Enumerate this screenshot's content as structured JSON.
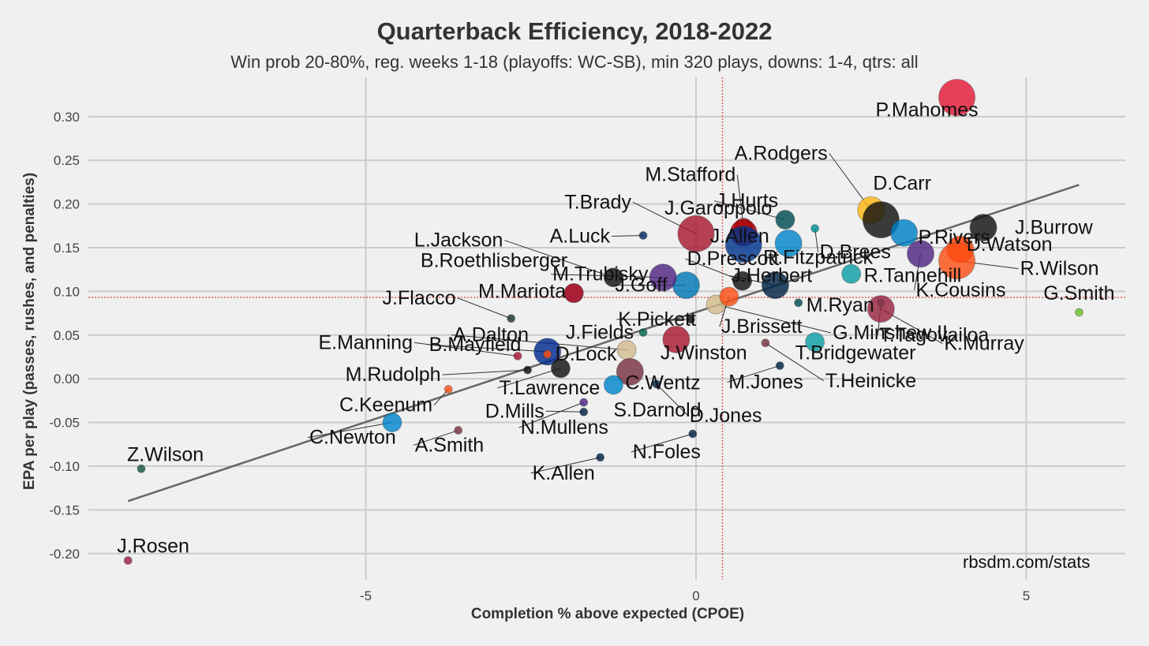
{
  "chart_data": {
    "type": "scatter",
    "title": "Quarterback Efficiency, 2018-2022",
    "subtitle": "Win prob 20-80%, reg. weeks 1-18 (playoffs: WC-SB), min 320 plays, downs: 1-4, qtrs: all",
    "xlabel": "Completion % above expected (CPOE)",
    "ylabel": "EPA per play (passes, rushes, and penalties)",
    "caption": "rbsdm.com/stats",
    "xlim": [
      -9.2,
      6.5
    ],
    "ylim": [
      -0.23,
      0.345
    ],
    "x_ticks": [
      {
        "value": -5,
        "label": "-5"
      },
      {
        "value": 0,
        "label": "0"
      },
      {
        "value": 5,
        "label": "5"
      }
    ],
    "y_ticks": [
      {
        "value": 0.3,
        "label": "0.30"
      },
      {
        "value": 0.25,
        "label": "0.25"
      },
      {
        "value": 0.2,
        "label": "0.20"
      },
      {
        "value": 0.15,
        "label": "0.15"
      },
      {
        "value": 0.1,
        "label": "0.10"
      },
      {
        "value": 0.05,
        "label": "0.05"
      },
      {
        "value": 0.0,
        "label": "0.00"
      },
      {
        "value": -0.05,
        "label": "-0.05"
      },
      {
        "value": -0.1,
        "label": "-0.10"
      },
      {
        "value": -0.15,
        "label": "-0.15"
      },
      {
        "value": -0.2,
        "label": "-0.20"
      }
    ],
    "grid": true,
    "reference_lines": {
      "x_mean": 0.4,
      "y_mean": 0.093,
      "color": "#e06060"
    },
    "trend_line": {
      "x": [
        -8.6,
        5.8
      ],
      "y": [
        -0.14,
        0.222
      ],
      "color": "#666666"
    },
    "points": [
      {
        "name": "P.Mahomes",
        "x": 3.95,
        "y": 0.322,
        "size": "large",
        "color": "#e31837"
      },
      {
        "name": "A.Rodgers",
        "x": 2.65,
        "y": 0.193,
        "size": "medium",
        "color": "#ffb612"
      },
      {
        "name": "D.Carr",
        "x": 2.8,
        "y": 0.182,
        "size": "large",
        "color": "#111111"
      },
      {
        "name": "J.Hurts",
        "x": 1.35,
        "y": 0.182,
        "size": "small",
        "color": "#004c54"
      },
      {
        "name": "P.Rivers",
        "x": 3.15,
        "y": 0.167,
        "size": "medium",
        "color": "#0080c6"
      },
      {
        "name": "J.Burrow",
        "x": 4.35,
        "y": 0.173,
        "size": "medium",
        "color": "#111111"
      },
      {
        "name": "D.Watson",
        "x": 4.0,
        "y": 0.148,
        "size": "medium",
        "color": "#ff3c00"
      },
      {
        "name": "R.Wilson",
        "x": 3.95,
        "y": 0.135,
        "size": "large",
        "color": "#fb4f14"
      },
      {
        "name": "D.Brees",
        "x": 1.8,
        "y": 0.172,
        "size": "tiny",
        "color": "#008e97"
      },
      {
        "name": "K.Cousins",
        "x": 3.4,
        "y": 0.143,
        "size": "medium",
        "color": "#4f2683"
      },
      {
        "name": "R.Tannehill",
        "x": 2.35,
        "y": 0.12,
        "size": "small",
        "color": "#0c9ea5"
      },
      {
        "name": "G.Smith",
        "x": 5.8,
        "y": 0.076,
        "size": "tiny",
        "color": "#69be28"
      },
      {
        "name": "T.Tagovailoa",
        "x": 2.8,
        "y": 0.087,
        "size": "tiny",
        "color": "#008e97"
      },
      {
        "name": "K.Murray",
        "x": 2.8,
        "y": 0.08,
        "size": "medium",
        "color": "#97233f"
      },
      {
        "name": "M.Stafford",
        "x": 0.72,
        "y": 0.173,
        "size": "small",
        "color": "#a71930"
      },
      {
        "name": "J.Garoppolo",
        "x": 0.72,
        "y": 0.167,
        "size": "medium",
        "color": "#aa0000"
      },
      {
        "name": "T.Brady",
        "x": 0.0,
        "y": 0.166,
        "size": "large",
        "color": "#a71930"
      },
      {
        "name": "J.Allen",
        "x": 0.72,
        "y": 0.154,
        "size": "large",
        "color": "#00338d"
      },
      {
        "name": "R.Fitzpatrick",
        "x": 1.4,
        "y": 0.155,
        "size": "medium",
        "color": "#0085ca"
      },
      {
        "name": "J.Herbert",
        "x": 1.2,
        "y": 0.107,
        "size": "medium",
        "color": "#002244"
      },
      {
        "name": "D.Prescott",
        "x": 0.7,
        "y": 0.112,
        "size": "small",
        "color": "#111111"
      },
      {
        "name": "J.Goff",
        "x": -0.15,
        "y": 0.107,
        "size": "medium",
        "color": "#0076b6"
      },
      {
        "name": "M.Trubisky",
        "x": -0.5,
        "y": 0.116,
        "size": "medium",
        "color": "#4f2683"
      },
      {
        "name": "L.Jackson",
        "x": -1.25,
        "y": 0.116,
        "size": "small",
        "color": "#111111"
      },
      {
        "name": "A.Luck",
        "x": -0.8,
        "y": 0.164,
        "size": "tiny",
        "color": "#002c5f"
      },
      {
        "name": "M.Ryan",
        "x": 1.55,
        "y": 0.087,
        "size": "tiny",
        "color": "#004c54"
      },
      {
        "name": "G.Minshew II",
        "x": 0.3,
        "y": 0.085,
        "size": "small",
        "color": "#d3bc8d"
      },
      {
        "name": "J.Brissett",
        "x": 0.5,
        "y": 0.094,
        "size": "small",
        "color": "#fb4f14"
      },
      {
        "name": "B.Roethlisberger",
        "x": -1.85,
        "y": 0.098,
        "size": "small",
        "color": "#a71930"
      },
      {
        "name": "M.Mariota",
        "x": -1.85,
        "y": 0.098,
        "size": "small",
        "color": "#a71930"
      },
      {
        "name": "J.Flacco",
        "x": -2.8,
        "y": 0.069,
        "size": "tiny",
        "color": "#203731"
      },
      {
        "name": "K.Pickett",
        "x": -0.08,
        "y": 0.068,
        "size": "tiny",
        "color": "#111111"
      },
      {
        "name": "J.Fields",
        "x": -0.8,
        "y": 0.053,
        "size": "tiny",
        "color": "#00654f"
      },
      {
        "name": "A.Dalton",
        "x": -1.05,
        "y": 0.033,
        "size": "small",
        "color": "#d3bc8d"
      },
      {
        "name": "J.Winston",
        "x": -0.3,
        "y": 0.045,
        "size": "medium",
        "color": "#a71930"
      },
      {
        "name": "T.Bridgewater",
        "x": 1.8,
        "y": 0.042,
        "size": "small",
        "color": "#0c9ea5"
      },
      {
        "name": "T.Heinicke",
        "x": 1.05,
        "y": 0.041,
        "size": "tiny",
        "color": "#773141"
      },
      {
        "name": "M.Jones",
        "x": 1.27,
        "y": 0.015,
        "size": "tiny",
        "color": "#002244"
      },
      {
        "name": "E.Manning",
        "x": -2.7,
        "y": 0.026,
        "size": "tiny",
        "color": "#a71930"
      },
      {
        "name": "B.Mayfield",
        "x": -2.25,
        "y": 0.031,
        "size": "medium",
        "color": "#002a8c"
      },
      {
        "name": "D.Lock",
        "x": -2.25,
        "y": 0.028,
        "size": "tiny",
        "color": "#fb4f14"
      },
      {
        "name": "M.Rudolph",
        "x": -2.55,
        "y": 0.01,
        "size": "tiny",
        "color": "#111111"
      },
      {
        "name": "T.Lawrence",
        "x": -2.05,
        "y": 0.012,
        "size": "small",
        "color": "#111111"
      },
      {
        "name": "C.Wentz",
        "x": -1.0,
        "y": 0.008,
        "size": "medium",
        "color": "#773141"
      },
      {
        "name": "S.Darnold",
        "x": -1.25,
        "y": -0.007,
        "size": "small",
        "color": "#0085ca"
      },
      {
        "name": "D.Jones",
        "x": -0.6,
        "y": -0.006,
        "size": "tiny",
        "color": "#002244"
      },
      {
        "name": "C.Keenum",
        "x": -3.75,
        "y": -0.012,
        "size": "tiny",
        "color": "#fb4f14"
      },
      {
        "name": "D.Mills",
        "x": -1.7,
        "y": -0.038,
        "size": "tiny",
        "color": "#002244"
      },
      {
        "name": "N.Mullens",
        "x": -1.7,
        "y": -0.027,
        "size": "tiny",
        "color": "#4f2683"
      },
      {
        "name": "C.Newton",
        "x": -4.6,
        "y": -0.05,
        "size": "small",
        "color": "#0085ca"
      },
      {
        "name": "A.Smith",
        "x": -3.6,
        "y": -0.059,
        "size": "tiny",
        "color": "#773141"
      },
      {
        "name": "N.Foles",
        "x": -0.05,
        "y": -0.063,
        "size": "tiny",
        "color": "#002244"
      },
      {
        "name": "K.Allen",
        "x": -1.45,
        "y": -0.09,
        "size": "tiny",
        "color": "#002244"
      },
      {
        "name": "Z.Wilson",
        "x": -8.4,
        "y": -0.103,
        "size": "tiny",
        "color": "#125740"
      },
      {
        "name": "J.Rosen",
        "x": -8.6,
        "y": -0.208,
        "size": "tiny",
        "color": "#97233f"
      }
    ]
  }
}
